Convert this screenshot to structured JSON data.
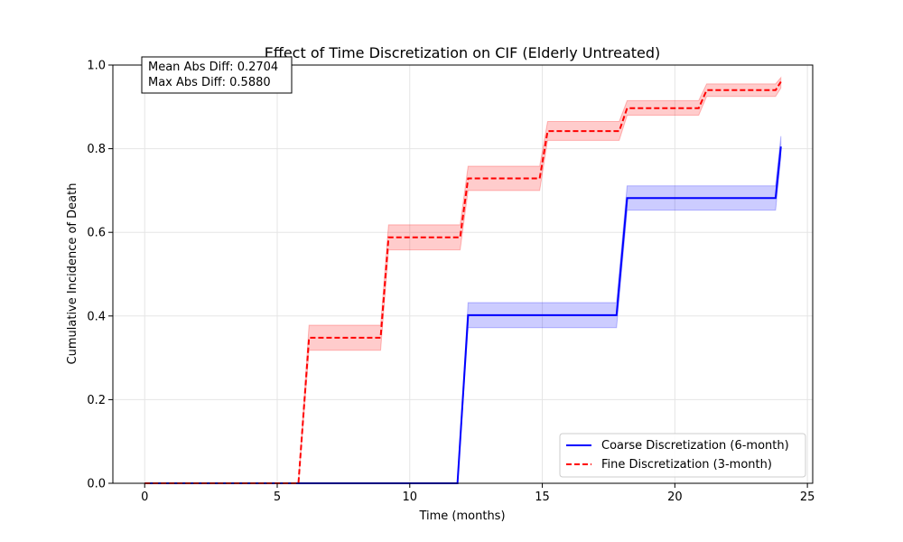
{
  "chart_data": {
    "type": "line",
    "title": "Effect of Time Discretization on CIF (Elderly Untreated)",
    "xlabel": "Time (months)",
    "ylabel": "Cumulative Incidence of Death",
    "xlim": [
      -1.2,
      25.2
    ],
    "ylim": [
      0,
      1.0
    ],
    "xticks": [
      0,
      5,
      10,
      15,
      20,
      25
    ],
    "yticks": [
      0.0,
      0.2,
      0.4,
      0.6,
      0.8,
      1.0
    ],
    "xtick_labels": [
      "0",
      "5",
      "10",
      "15",
      "20",
      "25"
    ],
    "ytick_labels": [
      "0.0",
      "0.2",
      "0.4",
      "0.6",
      "0.8",
      "1.0"
    ],
    "grid": true,
    "legend_position": "bottom-right",
    "annotation": {
      "position": "top-left",
      "lines": [
        "Mean Abs Diff: 0.2704",
        "Max Abs Diff: 0.5880"
      ]
    },
    "series": [
      {
        "name": "Coarse Discretization (6-month)",
        "color": "#0000ff",
        "band_color": "#0000ff",
        "linestyle": "solid",
        "x": [
          0,
          11.8,
          12.2,
          17.8,
          18.2,
          23.8,
          24.0
        ],
        "y": [
          0.0,
          0.0,
          0.402,
          0.402,
          0.682,
          0.682,
          0.805
        ],
        "lower": [
          0.0,
          0.0,
          0.372,
          0.372,
          0.653,
          0.653,
          0.78
        ],
        "upper": [
          0.0,
          0.0,
          0.432,
          0.432,
          0.711,
          0.711,
          0.83
        ]
      },
      {
        "name": "Fine Discretization (3-month)",
        "color": "#ff0000",
        "band_color": "#ff0000",
        "linestyle": "dashed",
        "x": [
          0,
          5.8,
          6.2,
          8.9,
          9.2,
          11.9,
          12.2,
          14.9,
          15.2,
          17.9,
          18.2,
          20.9,
          21.2,
          23.8,
          24.0
        ],
        "y": [
          0.0,
          0.0,
          0.348,
          0.348,
          0.588,
          0.588,
          0.729,
          0.729,
          0.842,
          0.842,
          0.897,
          0.897,
          0.94,
          0.94,
          0.96
        ],
        "lower": [
          0.0,
          0.0,
          0.318,
          0.318,
          0.558,
          0.558,
          0.7,
          0.7,
          0.82,
          0.82,
          0.88,
          0.88,
          0.925,
          0.925,
          0.945
        ],
        "upper": [
          0.0,
          0.0,
          0.378,
          0.378,
          0.618,
          0.618,
          0.758,
          0.758,
          0.865,
          0.865,
          0.915,
          0.915,
          0.955,
          0.955,
          0.97
        ]
      }
    ]
  }
}
